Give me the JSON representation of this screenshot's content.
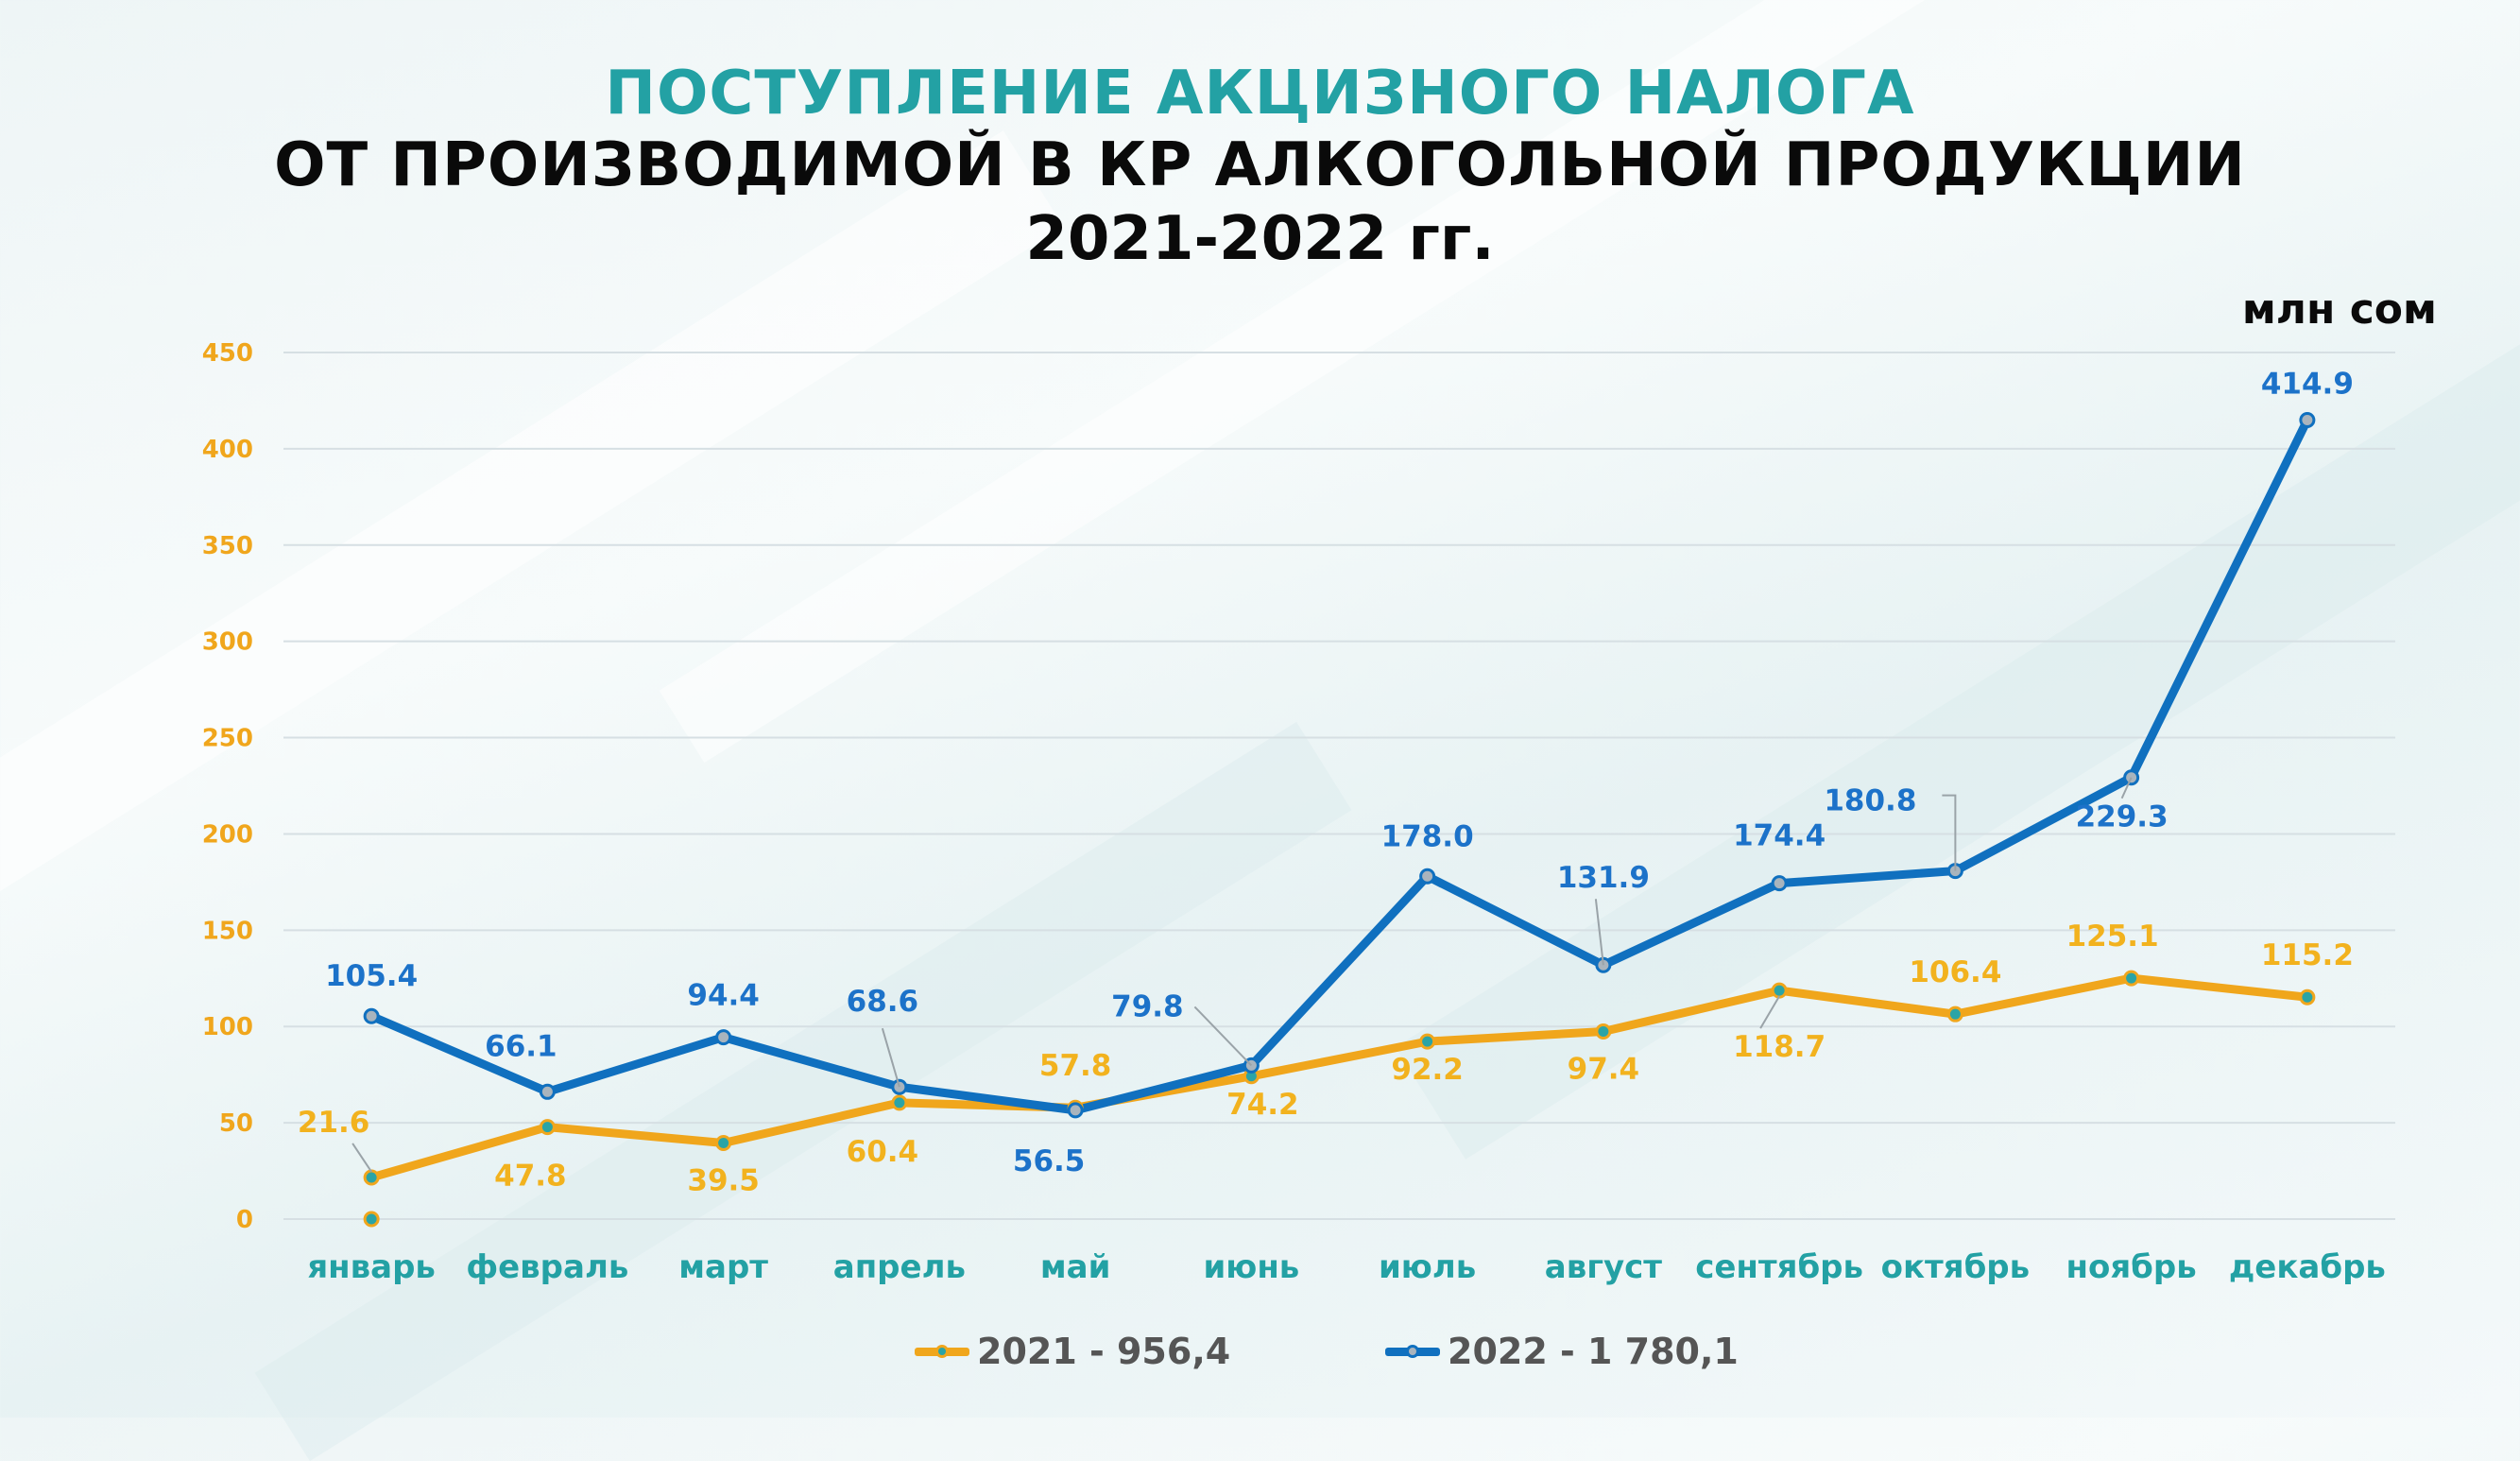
{
  "title": {
    "line1": "ПОСТУПЛЕНИЕ АКЦИЗНОГО НАЛОГА",
    "line2": "ОТ ПРОИЗВОДИМОЙ В КР АЛКОГОЛЬНОЙ ПРОДУКЦИИ",
    "line3": "2021-2022 гг."
  },
  "unit": "млн сом",
  "colors": {
    "series_2021": "#f0a61c",
    "series_2022": "#1070bf",
    "label_2021": "#f2b21e",
    "label_2022": "#1c72c9",
    "axis_ticks": "#f0a61c",
    "categories": "#23a1a4",
    "title_accent": "#23a1a4",
    "grid": "#d6dfe3"
  },
  "legend": {
    "item_2021": "2021 - 956,4",
    "item_2022": "2022 - 1 780,1"
  },
  "chart_data": {
    "type": "line",
    "categories": [
      "январь",
      "февраль",
      "март",
      "апрель",
      "май",
      "июнь",
      "июль",
      "август",
      "сентябрь",
      "октябрь",
      "ноябрь",
      "декабрь"
    ],
    "ylim": [
      0,
      450
    ],
    "yticks": [
      0,
      50,
      100,
      150,
      200,
      250,
      300,
      350,
      400,
      450
    ],
    "grid": true,
    "legend_position": "bottom",
    "series": [
      {
        "name": "2021 - 956,4",
        "values": [
          21.6,
          47.8,
          39.5,
          60.4,
          57.8,
          74.2,
          92.2,
          97.4,
          118.7,
          106.4,
          125.1,
          115.2
        ],
        "labels": [
          "21.6",
          "47.8",
          "39.5",
          "60.4",
          "57.8",
          "74.2",
          "92.2",
          "97.4",
          "118.7",
          "106.4",
          "125.1",
          "115.2"
        ],
        "extra_point_value": 0
      },
      {
        "name": "2022 - 1 780,1",
        "values": [
          105.4,
          66.1,
          94.4,
          68.6,
          56.5,
          79.8,
          178.0,
          131.9,
          174.4,
          180.8,
          229.3,
          414.9
        ],
        "labels": [
          "105.4",
          "66.1",
          "94.4",
          "68.6",
          "56.5",
          "79.8",
          "178.0",
          "131.9",
          "174.4",
          "180.8",
          "229.3",
          "414.9"
        ]
      }
    ]
  }
}
